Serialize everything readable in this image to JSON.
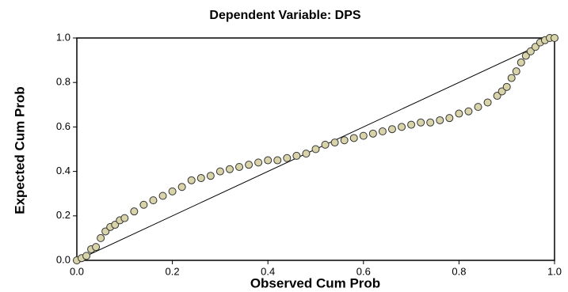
{
  "chart_data": {
    "type": "scatter",
    "title": "Dependent Variable: DPS",
    "x_label": "Observed Cum Prob",
    "y_label": "Expected Cum Prob",
    "xlim": [
      0,
      1
    ],
    "ylim": [
      0,
      1
    ],
    "xticks": [
      {
        "value": 0,
        "label": "0.0"
      },
      {
        "value": 0.2,
        "label": "0.2"
      },
      {
        "value": 0.4,
        "label": "0.4"
      },
      {
        "value": 0.6,
        "label": "0.6"
      },
      {
        "value": 0.8,
        "label": "0.8"
      },
      {
        "value": 1,
        "label": "1.0"
      }
    ],
    "yticks": [
      {
        "value": 0,
        "label": "0.0"
      },
      {
        "value": 0.2,
        "label": "0.2"
      },
      {
        "value": 0.4,
        "label": "0.4"
      },
      {
        "value": 0.6,
        "label": "0.6"
      },
      {
        "value": 0.8,
        "label": "0.8"
      },
      {
        "value": 1,
        "label": "1.0"
      }
    ],
    "color": "#d9d3a9",
    "x": [
      0,
      0.01,
      0.02,
      0.03,
      0.04,
      0.05,
      0.06,
      0.07,
      0.08,
      0.09,
      0.1,
      0.12,
      0.14,
      0.16,
      0.18,
      0.2,
      0.22,
      0.24,
      0.26,
      0.28,
      0.3,
      0.32,
      0.34,
      0.36,
      0.38,
      0.4,
      0.42,
      0.44,
      0.46,
      0.48,
      0.5,
      0.52,
      0.54,
      0.56,
      0.58,
      0.6,
      0.62,
      0.64,
      0.66,
      0.68,
      0.7,
      0.72,
      0.74,
      0.76,
      0.78,
      0.8,
      0.82,
      0.84,
      0.86,
      0.88,
      0.89,
      0.9,
      0.91,
      0.92,
      0.93,
      0.94,
      0.95,
      0.96,
      0.97,
      0.98,
      0.99,
      1.0
    ],
    "values": [
      0,
      0.01,
      0.02,
      0.05,
      0.06,
      0.1,
      0.13,
      0.15,
      0.16,
      0.18,
      0.19,
      0.22,
      0.25,
      0.27,
      0.29,
      0.31,
      0.33,
      0.36,
      0.37,
      0.38,
      0.4,
      0.41,
      0.42,
      0.43,
      0.44,
      0.45,
      0.45,
      0.46,
      0.47,
      0.48,
      0.5,
      0.52,
      0.53,
      0.54,
      0.55,
      0.56,
      0.57,
      0.58,
      0.59,
      0.6,
      0.61,
      0.62,
      0.62,
      0.63,
      0.64,
      0.66,
      0.67,
      0.69,
      0.71,
      0.74,
      0.76,
      0.78,
      0.82,
      0.85,
      0.89,
      0.92,
      0.94,
      0.96,
      0.98,
      0.99,
      1.0,
      1.0
    ]
  }
}
